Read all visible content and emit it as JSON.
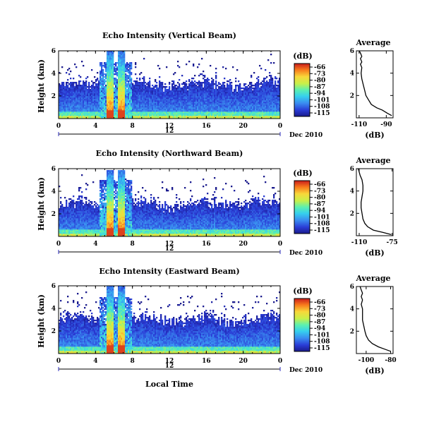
{
  "chart_data": [
    {
      "type": "heatmap",
      "title": "Echo Intensity (Vertical Beam)",
      "ylabel": "Height (km)",
      "x_ticks": [
        "0",
        "4",
        "8",
        "12",
        "16",
        "20",
        "0"
      ],
      "y_ticks": [
        "2",
        "4",
        "6"
      ],
      "date_tick": "12",
      "date_label": "Dec 2010",
      "xlim": [
        0,
        24
      ],
      "ylim": [
        0,
        6
      ],
      "colorbar": {
        "unit": "(dB)",
        "ticks": [
          "-66",
          "-73",
          "-80",
          "-87",
          "-94",
          "-101",
          "-108",
          "-115"
        ]
      },
      "values_description_free": true,
      "features": {
        "background_top_km": 3.3,
        "storm_columns_hours": [
          [
            5.2,
            6.0
          ],
          [
            6.4,
            7.2
          ]
        ],
        "storm_top_km": 6.0,
        "min_db": -115,
        "max_db": -66
      }
    },
    {
      "type": "line",
      "title": "Average",
      "xlabel": "(dB)",
      "x_ticks": [
        "-110",
        "-90"
      ],
      "y_ticks": [
        "2",
        "4",
        "6"
      ],
      "xlim": [
        -112,
        -85
      ],
      "ylim": [
        0,
        6
      ],
      "x": [
        -86,
        -89,
        -93,
        -97,
        -101,
        -103,
        -105,
        -106,
        -107,
        -108,
        -108.5,
        -108,
        -109,
        -108,
        -109,
        -108,
        -109,
        -110
      ],
      "y": [
        0.2,
        0.4,
        0.7,
        0.9,
        1.2,
        1.6,
        2.0,
        2.5,
        3.0,
        3.5,
        4.0,
        4.5,
        4.8,
        5.0,
        5.3,
        5.5,
        5.8,
        6.0
      ]
    },
    {
      "type": "heatmap",
      "title": "Echo Intensity (Northward Beam)",
      "ylabel": "Height (km)",
      "x_ticks": [
        "0",
        "4",
        "8",
        "12",
        "16",
        "20",
        "0"
      ],
      "y_ticks": [
        "2",
        "4",
        "6"
      ],
      "date_tick": "12",
      "date_label": "Dec 2010",
      "xlim": [
        0,
        24
      ],
      "ylim": [
        0,
        6
      ],
      "colorbar": {
        "unit": "(dB)",
        "ticks": [
          "-66",
          "-73",
          "-80",
          "-87",
          "-94",
          "-101",
          "-108",
          "-115"
        ]
      },
      "features": {
        "background_top_km": 3.1,
        "storm_columns_hours": [
          [
            5.2,
            6.0
          ],
          [
            6.4,
            7.2
          ]
        ],
        "storm_top_km": 5.9,
        "min_db": -115,
        "max_db": -66
      }
    },
    {
      "type": "line",
      "title": "Average",
      "xlabel": "(dB)",
      "x_ticks": [
        "-110",
        "-75"
      ],
      "y_ticks": [
        "2",
        "4",
        "6"
      ],
      "xlim": [
        -113,
        -74
      ],
      "ylim": [
        0,
        6
      ],
      "x": [
        -76,
        -85,
        -95,
        -101,
        -104,
        -106,
        -107,
        -108,
        -108,
        -107,
        -106,
        -106,
        -107,
        -109,
        -110,
        -111
      ],
      "y": [
        0.1,
        0.3,
        0.5,
        0.8,
        1.1,
        1.5,
        2.0,
        2.5,
        3.0,
        3.5,
        4.0,
        4.5,
        5.0,
        5.4,
        5.7,
        6.0
      ]
    },
    {
      "type": "heatmap",
      "title": "Echo Intensity (Eastward Beam)",
      "ylabel": "Height (km)",
      "xlabel": "Local Time",
      "x_ticks": [
        "0",
        "4",
        "8",
        "12",
        "16",
        "20",
        "0"
      ],
      "y_ticks": [
        "2",
        "4",
        "6"
      ],
      "date_tick": "12",
      "date_label": "Dec 2010",
      "xlim": [
        0,
        24
      ],
      "ylim": [
        0,
        6
      ],
      "colorbar": {
        "unit": "(dB)",
        "ticks": [
          "-66",
          "-73",
          "-80",
          "-87",
          "-94",
          "-101",
          "-108",
          "-115"
        ]
      },
      "features": {
        "background_top_km": 3.3,
        "storm_columns_hours": [
          [
            5.2,
            6.0
          ],
          [
            6.4,
            7.2
          ]
        ],
        "storm_top_km": 6.0,
        "min_db": -115,
        "max_db": -66
      }
    },
    {
      "type": "line",
      "title": "Average",
      "xlabel": "(dB)",
      "x_ticks": [
        "-100",
        "-80"
      ],
      "y_ticks": [
        "2",
        "4",
        "6"
      ],
      "xlim": [
        -108,
        -78
      ],
      "ylim": [
        0,
        6
      ],
      "x": [
        -80,
        -85,
        -90,
        -95,
        -98,
        -100,
        -101,
        -102,
        -103,
        -103,
        -103,
        -104,
        -103,
        -104,
        -103,
        -104,
        -105
      ],
      "y": [
        0.2,
        0.4,
        0.6,
        0.9,
        1.2,
        1.6,
        2.0,
        2.5,
        3.0,
        3.5,
        4.0,
        4.4,
        4.8,
        5.1,
        5.4,
        5.7,
        6.0
      ]
    }
  ]
}
